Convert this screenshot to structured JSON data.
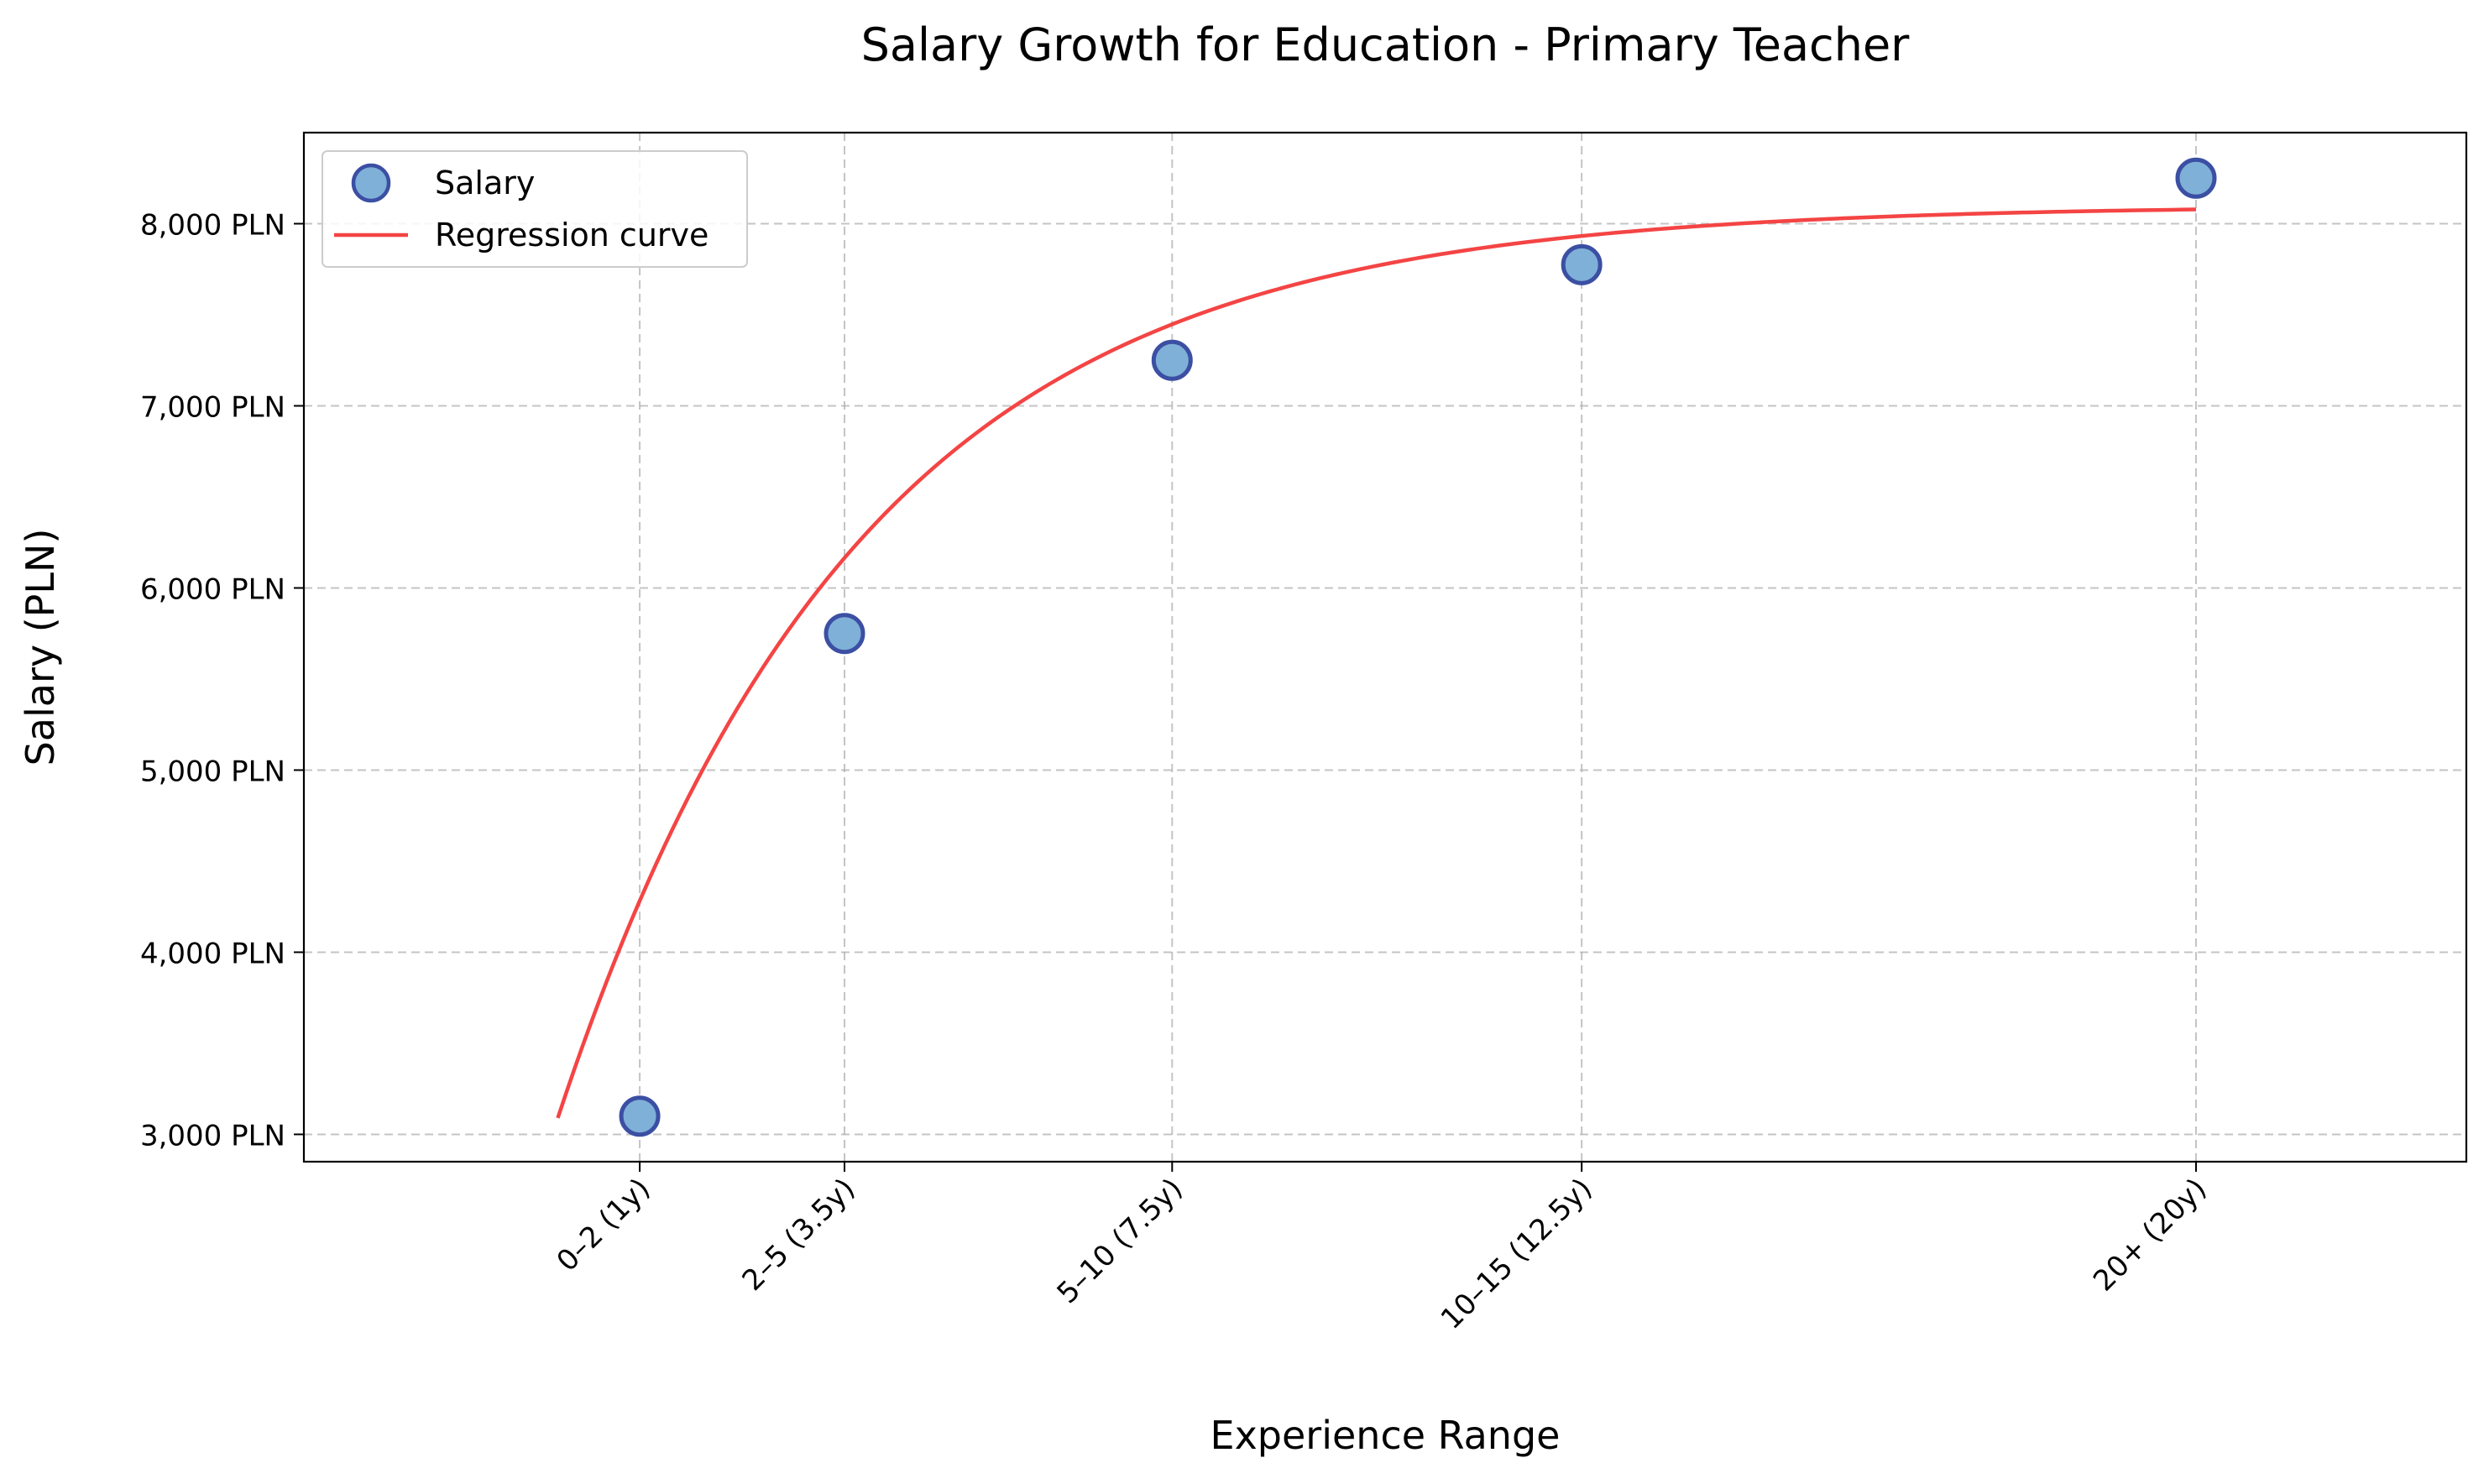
{
  "chart_data": {
    "type": "scatter",
    "title": "Salary Growth for Education - Primary Teacher",
    "xlabel": "Experience Range",
    "ylabel": "Salary (PLN)",
    "xlim": [
      -3.1,
      23.3
    ],
    "ylim": [
      2850,
      8500
    ],
    "x_ticks": [
      {
        "x": 1,
        "label": "0–2 (1y)"
      },
      {
        "x": 3.5,
        "label": "2–5 (3.5y)"
      },
      {
        "x": 7.5,
        "label": "5–10 (7.5y)"
      },
      {
        "x": 12.5,
        "label": "10–15 (12.5y)"
      },
      {
        "x": 20,
        "label": "20+ (20y)"
      }
    ],
    "y_ticks": [
      {
        "y": 3000,
        "label": "3,000 PLN"
      },
      {
        "y": 4000,
        "label": "4,000 PLN"
      },
      {
        "y": 5000,
        "label": "5,000 PLN"
      },
      {
        "y": 6000,
        "label": "6,000 PLN"
      },
      {
        "y": 7000,
        "label": "7,000 PLN"
      },
      {
        "y": 8000,
        "label": "8,000 PLN"
      }
    ],
    "grid": true,
    "legend_position": "top-left",
    "series": [
      {
        "name": "Salary",
        "kind": "scatter",
        "color": "#7fb0d8",
        "edge_color": "#3b4fa3",
        "points": [
          {
            "x": 1,
            "y": 3100
          },
          {
            "x": 3.5,
            "y": 5750
          },
          {
            "x": 7.5,
            "y": 7250
          },
          {
            "x": 12.5,
            "y": 7775
          },
          {
            "x": 20,
            "y": 8250
          }
        ]
      },
      {
        "name": "Regression curve",
        "kind": "line",
        "color": "#f44444",
        "curve": {
          "a": 8100,
          "b": 5010,
          "k": 0.2718,
          "x_start": 0,
          "x_end": 20
        }
      }
    ]
  }
}
